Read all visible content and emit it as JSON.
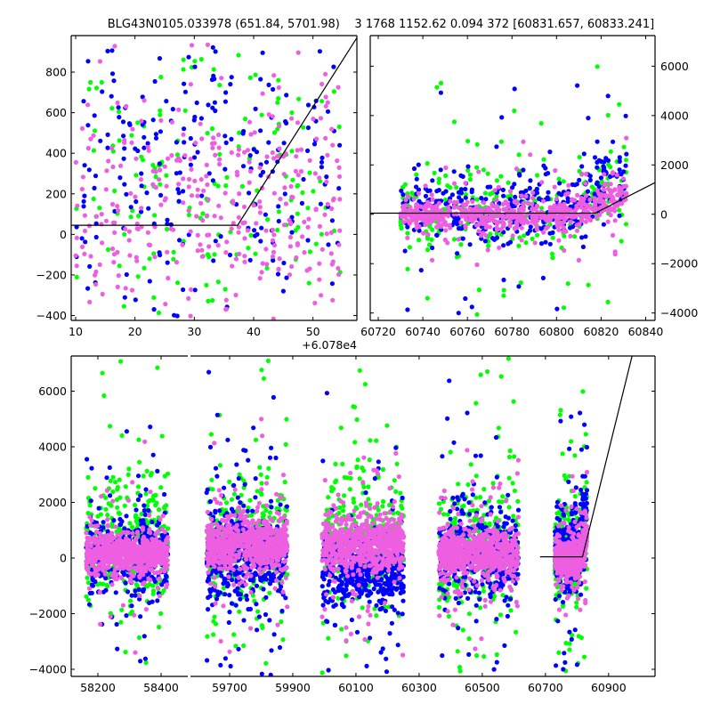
{
  "chart_data": {
    "type": "scatter",
    "title": "BLG43N0105.033978 (651.84, 5701.98)    3 1768 1152.62 0.094 372 [60831.657, 60833.241]",
    "colors": {
      "green": "#00ff00",
      "blue": "#0000ff",
      "violet": "#ee5ee0",
      "model": "#000000"
    },
    "series_order": [
      "green",
      "blue",
      "violet"
    ],
    "model_line": {
      "break_x": 60817.3,
      "level": 45,
      "slope_per_day": 46
    },
    "panels": [
      {
        "id": "top-left",
        "xlim": [
          9.25,
          57.4
        ],
        "ylim": [
          -424,
          980
        ],
        "x_offset_label": "+6.078e4",
        "x_offset": 60780,
        "xticks": [
          10,
          20,
          30,
          40,
          50
        ],
        "xtick_labels": [
          "10",
          "20",
          "30",
          "40",
          "50"
        ],
        "yticks": [
          -400,
          -200,
          0,
          200,
          400,
          600,
          800
        ],
        "ytick_labels": [
          "−400",
          "−200",
          "0",
          "200",
          "400",
          "600",
          "800"
        ],
        "ytick_side": "left",
        "scatter": {
          "x_range": [
            10,
            55
          ],
          "seed": 7,
          "series": {
            "green": {
              "n": 170,
              "center": 250,
              "sd": 420
            },
            "blue": {
              "n": 230,
              "center": 350,
              "sd": 400
            },
            "violet": {
              "n": 330,
              "center": 150,
              "sd": 320
            }
          }
        }
      },
      {
        "id": "top-right",
        "xlim": [
          60716.4,
          60844.2
        ],
        "ylim": [
          -4300,
          7240
        ],
        "xticks": [
          60720,
          60740,
          60760,
          60780,
          60800,
          60820,
          60840
        ],
        "xtick_labels": [
          "60720",
          "60740",
          "60760",
          "60780",
          "60800",
          "60820",
          "60840"
        ],
        "yticks": [
          -4000,
          -2000,
          0,
          2000,
          4000,
          6000
        ],
        "ytick_labels": [
          "−4000",
          "−2000",
          "0",
          "2000",
          "4000",
          "6000"
        ],
        "ytick_side": "right",
        "uses_season": 4
      },
      {
        "id": "bottom",
        "broken_x": true,
        "x_segments": [
          [
            58115.5,
            58484.5
          ],
          [
            59576,
            61047
          ]
        ],
        "ylim": [
          -4256,
          7264
        ],
        "xticks": [
          58200,
          58400,
          59700,
          59900,
          60100,
          60300,
          60500,
          60700,
          60900
        ],
        "xtick_labels": [
          "58200",
          "58400",
          "59700",
          "59900",
          "60100",
          "60300",
          "60500",
          "60700",
          "60900"
        ],
        "yticks": [
          -4000,
          -2000,
          0,
          2000,
          4000,
          6000
        ],
        "ytick_labels": [
          "−4000",
          "−2000",
          "0",
          "2000",
          "4000",
          "6000"
        ],
        "ytick_side": "left",
        "model_line_start": 60683
      }
    ],
    "seasons": [
      {
        "x_range": [
          58163,
          58422
        ],
        "seed": 11,
        "series": {
          "green": {
            "n": 300,
            "center": 600,
            "sd": 1100
          },
          "blue": {
            "n": 380,
            "center": 150,
            "sd": 650
          },
          "violet": {
            "n": 700,
            "center": 150,
            "sd": 330
          }
        }
      },
      {
        "x_range": [
          59627,
          59883
        ],
        "seed": 23,
        "series": {
          "green": {
            "n": 300,
            "center": 500,
            "sd": 1200
          },
          "blue": {
            "n": 420,
            "center": 0,
            "sd": 800
          },
          "violet": {
            "n": 700,
            "center": 450,
            "sd": 420
          }
        }
      },
      {
        "x_range": [
          59993,
          60252
        ],
        "seed": 37,
        "series": {
          "green": {
            "n": 300,
            "center": 800,
            "sd": 1300
          },
          "blue": {
            "n": 480,
            "center": -500,
            "sd": 700
          },
          "violet": {
            "n": 700,
            "center": 450,
            "sd": 450
          }
        }
      },
      {
        "x_range": [
          60362,
          60615
        ],
        "seed": 41,
        "series": {
          "green": {
            "n": 280,
            "center": 300,
            "sd": 1200
          },
          "blue": {
            "n": 420,
            "center": 200,
            "sd": 800
          },
          "violet": {
            "n": 700,
            "center": 200,
            "sd": 380
          }
        }
      },
      {
        "x_range": [
          60730,
          60832
        ],
        "seed": 53,
        "trend_start": 60805,
        "trend_slope": 60,
        "series": {
          "green": {
            "n": 260,
            "center": 0,
            "sd": 900
          },
          "blue": {
            "n": 380,
            "center": 100,
            "sd": 700
          },
          "violet": {
            "n": 600,
            "center": 0,
            "sd": 300
          }
        }
      }
    ]
  }
}
